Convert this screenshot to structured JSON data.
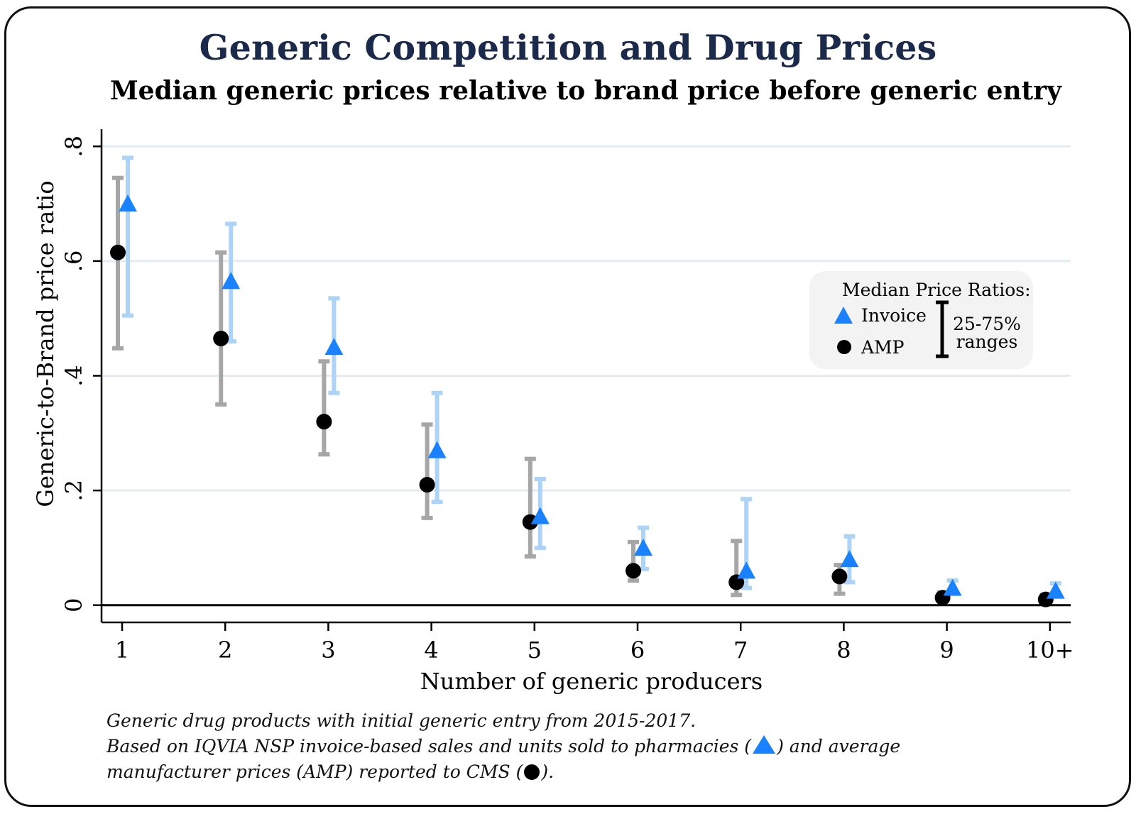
{
  "title": "Generic Competition and Drug Prices",
  "subtitle": "Median generic prices relative to brand price before generic entry",
  "notes": {
    "line1": "Generic drug products with initial generic entry from 2015-2017.",
    "line2_a": "Based on IQVIA NSP invoice-based sales and units sold to pharmacies (",
    "line2_b": ") and average",
    "line3_a": "manufacturer prices (AMP) reported to CMS (",
    "line3_b": ")."
  },
  "legend": {
    "title": "Median Price Ratios:",
    "invoice_label": "Invoice",
    "amp_label": "AMP",
    "range_label_1": "25-75%",
    "range_label_2": "ranges"
  },
  "colors": {
    "invoice_marker": "#1a82ff",
    "invoice_range": "#add4f7",
    "amp_marker": "#000000",
    "amp_range": "#a6a6a6",
    "title": "#1b2a4a",
    "gridline": "#e3ecf2"
  },
  "chart_data": {
    "type": "scatter",
    "xlabel": "Number of generic producers",
    "ylabel": "Generic-to-Brand price ratio",
    "categories": [
      "1",
      "2",
      "3",
      "4",
      "5",
      "6",
      "7",
      "8",
      "9",
      "10+"
    ],
    "ylim": [
      -0.03,
      0.83
    ],
    "yticks": [
      0,
      0.2,
      0.4,
      0.6,
      0.8
    ],
    "ytick_labels": [
      "0",
      ".2",
      ".4",
      ".6",
      ".8"
    ],
    "grid": true,
    "legend_position": "right",
    "series": [
      {
        "name": "Invoice",
        "marker": "triangle",
        "median": [
          0.7,
          0.565,
          0.45,
          0.27,
          0.155,
          0.1,
          0.06,
          0.08,
          0.03,
          0.025
        ],
        "p25": [
          0.505,
          0.46,
          0.37,
          0.18,
          0.1,
          0.063,
          0.03,
          0.04,
          0.02,
          0.015
        ],
        "p75": [
          0.78,
          0.665,
          0.535,
          0.37,
          0.22,
          0.135,
          0.185,
          0.12,
          0.043,
          0.038
        ]
      },
      {
        "name": "AMP",
        "marker": "circle",
        "median": [
          0.615,
          0.465,
          0.32,
          0.21,
          0.145,
          0.06,
          0.04,
          0.05,
          0.013,
          0.01
        ],
        "p25": [
          0.448,
          0.35,
          0.263,
          0.152,
          0.085,
          0.043,
          0.018,
          0.02,
          0.007,
          0.004
        ],
        "p75": [
          0.745,
          0.615,
          0.425,
          0.315,
          0.255,
          0.11,
          0.112,
          0.07,
          0.022,
          0.018
        ]
      }
    ]
  }
}
